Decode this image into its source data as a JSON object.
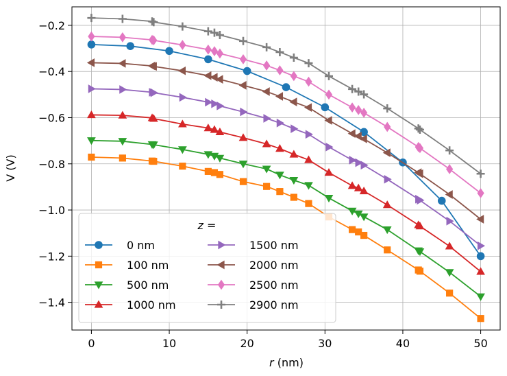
{
  "chart_data": {
    "type": "line",
    "xlabel_var": "r",
    "xlabel_unit": "(nm)",
    "ylabel": "V (V)",
    "xlim": [
      -2.5,
      52.5
    ],
    "ylim": [
      -1.52,
      -0.12
    ],
    "xticks": [
      0,
      10,
      20,
      30,
      40,
      50
    ],
    "yticks": [
      -0.2,
      -0.4,
      -0.6,
      -0.8,
      -1.0,
      -1.2,
      -1.4
    ],
    "ytick_labels": [
      "−0.2",
      "−0.4",
      "−0.6",
      "−0.8",
      "−1.0",
      "−1.2",
      "−1.4"
    ],
    "grid": true,
    "legend": {
      "title_var": "z",
      "title_suffix": " =",
      "placement": "lower-left",
      "columns": 2
    },
    "series": [
      {
        "name": "0 nm",
        "color": "#1f77b4",
        "marker": "circle",
        "x": [
          0,
          5,
          10,
          15,
          20,
          25,
          30,
          35,
          40,
          45,
          50
        ],
        "y": [
          -0.283,
          -0.29,
          -0.311,
          -0.347,
          -0.398,
          -0.468,
          -0.555,
          -0.662,
          -0.794,
          -0.96,
          -1.2
        ]
      },
      {
        "name": "100 nm",
        "color": "#ff7f0e",
        "marker": "square",
        "x": [
          0,
          4,
          7.8,
          8,
          11.7,
          15,
          15.8,
          16.5,
          19.5,
          22.5,
          24.2,
          26,
          27.9,
          30.5,
          33.5,
          34.3,
          35,
          38,
          42,
          42.2,
          46,
          50
        ],
        "y": [
          -0.771,
          -0.775,
          -0.788,
          -0.789,
          -0.81,
          -0.833,
          -0.838,
          -0.846,
          -0.877,
          -0.898,
          -0.92,
          -0.945,
          -0.972,
          -1.03,
          -1.085,
          -1.095,
          -1.11,
          -1.173,
          -1.26,
          -1.265,
          -1.36,
          -1.47
        ]
      },
      {
        "name": "500 nm",
        "color": "#2ca02c",
        "marker": "triangle-down",
        "x": [
          0,
          4,
          7.8,
          8,
          11.7,
          15,
          15.8,
          16.5,
          19.5,
          22.5,
          24.2,
          26,
          27.9,
          30.5,
          33.5,
          34.3,
          35,
          38,
          42,
          42.2,
          46,
          50
        ],
        "y": [
          -0.699,
          -0.702,
          -0.716,
          -0.717,
          -0.738,
          -0.759,
          -0.766,
          -0.775,
          -0.8,
          -0.822,
          -0.848,
          -0.871,
          -0.893,
          -0.948,
          -1.004,
          -1.016,
          -1.029,
          -1.085,
          -1.176,
          -1.18,
          -1.27,
          -1.375
        ]
      },
      {
        "name": "1000 nm",
        "color": "#d62728",
        "marker": "triangle-up",
        "x": [
          0,
          4,
          7.8,
          8,
          11.7,
          15,
          15.8,
          16.5,
          19.5,
          22.5,
          24.2,
          26,
          27.9,
          30.5,
          33.5,
          34.3,
          35,
          38,
          42,
          42.2,
          46,
          50
        ],
        "y": [
          -0.588,
          -0.59,
          -0.601,
          -0.604,
          -0.628,
          -0.645,
          -0.652,
          -0.662,
          -0.687,
          -0.714,
          -0.734,
          -0.759,
          -0.783,
          -0.838,
          -0.895,
          -0.905,
          -0.918,
          -0.978,
          -1.065,
          -1.07,
          -1.157,
          -1.267
        ]
      },
      {
        "name": "1500 nm",
        "color": "#9467bd",
        "marker": "triangle-right",
        "x": [
          0,
          4,
          7.8,
          8,
          11.7,
          15,
          15.8,
          16.5,
          19.5,
          22.5,
          24.2,
          26,
          27.9,
          30.5,
          33.5,
          34.3,
          35,
          38,
          42,
          42.2,
          46,
          50
        ],
        "y": [
          -0.475,
          -0.478,
          -0.49,
          -0.492,
          -0.512,
          -0.533,
          -0.54,
          -0.549,
          -0.575,
          -0.603,
          -0.623,
          -0.648,
          -0.672,
          -0.727,
          -0.784,
          -0.795,
          -0.806,
          -0.867,
          -0.953,
          -0.958,
          -1.048,
          -1.155
        ]
      },
      {
        "name": "2000 nm",
        "color": "#8c564b",
        "marker": "triangle-left",
        "x": [
          0,
          4,
          7.8,
          8,
          11.7,
          15,
          15.8,
          16.5,
          19.5,
          22.5,
          24.2,
          26,
          27.9,
          30.5,
          33.5,
          34.3,
          35,
          38,
          42,
          42.2,
          46,
          50
        ],
        "y": [
          -0.362,
          -0.365,
          -0.376,
          -0.378,
          -0.397,
          -0.418,
          -0.425,
          -0.434,
          -0.46,
          -0.487,
          -0.508,
          -0.532,
          -0.556,
          -0.612,
          -0.669,
          -0.68,
          -0.692,
          -0.752,
          -0.838,
          -0.843,
          -0.933,
          -1.04
        ]
      },
      {
        "name": "2500 nm",
        "color": "#e377c2",
        "marker": "diamond",
        "x": [
          0,
          4,
          7.8,
          8,
          11.7,
          15,
          15.8,
          16.5,
          19.5,
          22.5,
          24.2,
          26,
          27.9,
          30.5,
          33.5,
          34.3,
          35,
          38,
          42,
          42.2,
          46,
          50
        ],
        "y": [
          -0.248,
          -0.252,
          -0.263,
          -0.265,
          -0.285,
          -0.305,
          -0.312,
          -0.322,
          -0.347,
          -0.374,
          -0.395,
          -0.42,
          -0.444,
          -0.5,
          -0.556,
          -0.567,
          -0.579,
          -0.64,
          -0.727,
          -0.732,
          -0.823,
          -0.927
        ]
      },
      {
        "name": "2900 nm",
        "color": "#7f7f7f",
        "marker": "plus",
        "x": [
          0,
          4,
          7.8,
          8,
          11.7,
          15,
          15.8,
          16.5,
          19.5,
          22.5,
          24.2,
          26,
          27.9,
          30.5,
          33.5,
          34.3,
          35,
          38,
          42,
          42.2,
          46,
          50
        ],
        "y": [
          -0.168,
          -0.172,
          -0.183,
          -0.186,
          -0.205,
          -0.226,
          -0.232,
          -0.242,
          -0.268,
          -0.295,
          -0.316,
          -0.34,
          -0.364,
          -0.42,
          -0.476,
          -0.487,
          -0.499,
          -0.56,
          -0.647,
          -0.652,
          -0.742,
          -0.843
        ]
      }
    ]
  }
}
